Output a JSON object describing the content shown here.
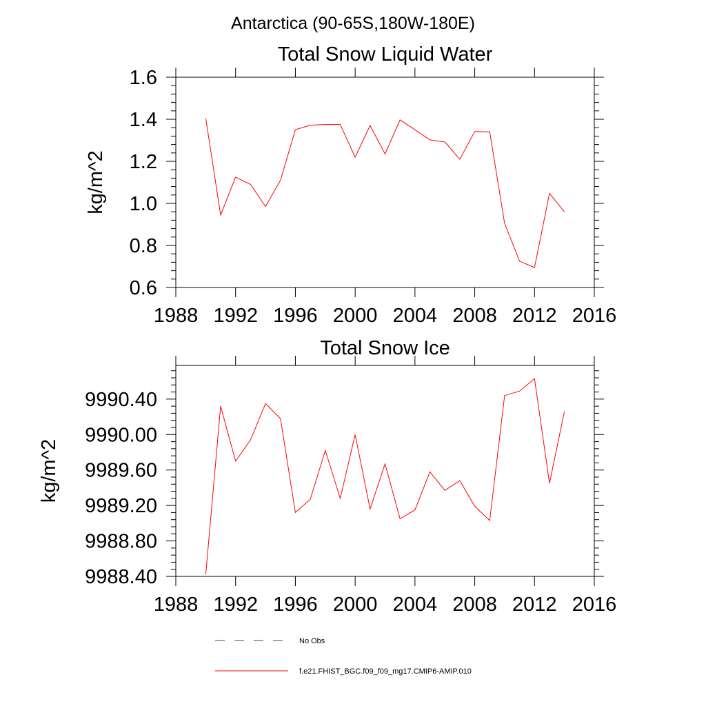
{
  "figure": {
    "suptitle": "Antarctica (90-65S,180W-180E)"
  },
  "chart_data": [
    {
      "type": "line",
      "title": "Total Snow Liquid Water",
      "xlabel": "",
      "ylabel": "kg/m^2",
      "xlim": [
        1988,
        2016
      ],
      "ylim": [
        0.6,
        1.6
      ],
      "xticks": [
        1988,
        1992,
        1996,
        2000,
        2004,
        2008,
        2012,
        2016
      ],
      "xtick_labels": [
        "1988",
        "1992",
        "1996",
        "2000",
        "2004",
        "2008",
        "2012",
        "2016"
      ],
      "yticks": [
        0.6,
        0.8,
        1.0,
        1.2,
        1.4,
        1.6
      ],
      "ytick_labels": [
        "0.6",
        "0.8",
        "1.0",
        "1.2",
        "1.4",
        "1.6"
      ],
      "series": [
        {
          "name": "f.e21.FHIST_BGC.f09_f09_mg17.CMIP6-AMIP.010",
          "color": "#ff0000",
          "x": [
            1990,
            1991,
            1992,
            1993,
            1994,
            1995,
            1996,
            1997,
            1998,
            1999,
            2000,
            2001,
            2002,
            2003,
            2004,
            2005,
            2006,
            2007,
            2008,
            2009,
            2010,
            2011,
            2012,
            2013,
            2014
          ],
          "y": [
            1.405,
            0.945,
            1.125,
            1.09,
            0.985,
            1.11,
            1.35,
            1.372,
            1.375,
            1.375,
            1.22,
            1.37,
            1.235,
            1.397,
            1.35,
            1.302,
            1.292,
            1.21,
            1.342,
            1.34,
            0.905,
            0.725,
            0.695,
            1.048,
            0.96
          ]
        }
      ]
    },
    {
      "type": "line",
      "title": "Total Snow Ice",
      "xlabel": "",
      "ylabel": "kg/m^2",
      "xlim": [
        1988,
        2016
      ],
      "ylim": [
        9988.4,
        9990.78
      ],
      "xticks": [
        1988,
        1992,
        1996,
        2000,
        2004,
        2008,
        2012,
        2016
      ],
      "xtick_labels": [
        "1988",
        "1992",
        "1996",
        "2000",
        "2004",
        "2008",
        "2012",
        "2016"
      ],
      "yticks": [
        9988.4,
        9988.8,
        9989.2,
        9989.6,
        9990.0,
        9990.4
      ],
      "ytick_labels": [
        "9988.40",
        "9988.80",
        "9989.20",
        "9989.60",
        "9990.00",
        "9990.40"
      ],
      "series": [
        {
          "name": "f.e21.FHIST_BGC.f09_f09_mg17.CMIP6-AMIP.010",
          "color": "#ff0000",
          "x": [
            1990,
            1991,
            1992,
            1993,
            1994,
            1995,
            1996,
            1997,
            1998,
            1999,
            2000,
            2001,
            2002,
            2003,
            2004,
            2005,
            2006,
            2007,
            2008,
            2009,
            2010,
            2011,
            2012,
            2013,
            2014
          ],
          "y": [
            9988.42,
            9990.32,
            9989.7,
            9989.94,
            9990.35,
            9990.18,
            9989.12,
            9989.27,
            9989.82,
            9989.28,
            9990.0,
            9989.16,
            9989.67,
            9989.05,
            9989.15,
            9989.58,
            9989.37,
            9989.48,
            9989.19,
            9989.03,
            9990.44,
            9990.49,
            9990.63,
            9989.45,
            9990.26
          ]
        }
      ]
    }
  ],
  "legend": {
    "items": [
      {
        "label": "No Obs",
        "style": "dashed",
        "color": "#44446e"
      },
      {
        "label": "f.e21.FHIST_BGC.f09_f09_mg17.CMIP6-AMIP.010",
        "style": "solid",
        "color": "#ff0000"
      }
    ]
  }
}
